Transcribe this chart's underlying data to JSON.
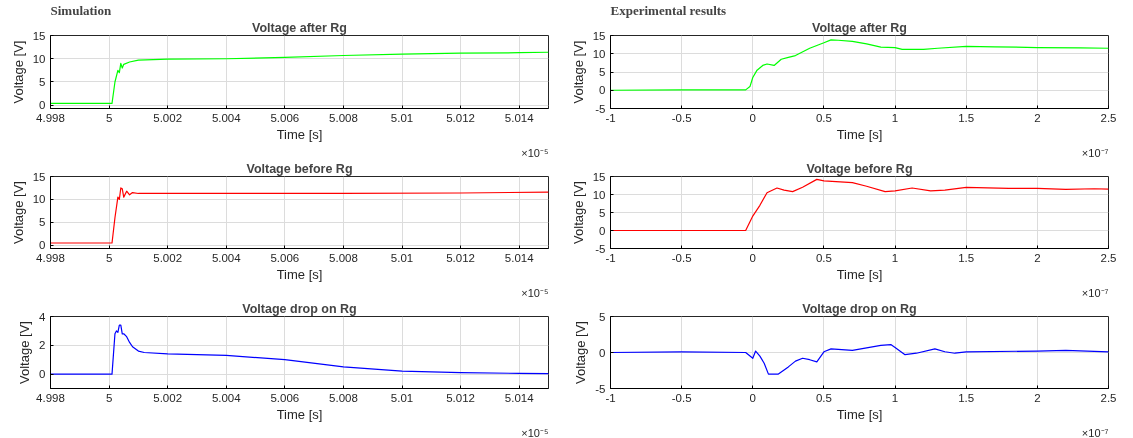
{
  "chart_data": [
    {
      "type": "line",
      "title": "Voltage after Rg",
      "xlabel": "Time [s]",
      "ylabel": "Voltage [V]",
      "annotations": [
        "Simulation",
        "×10⁻⁵"
      ],
      "xlim": [
        4.998,
        5.015
      ],
      "xticks": [
        4.998,
        5,
        5.002,
        5.004,
        5.006,
        5.008,
        5.01,
        5.012,
        5.014
      ],
      "ylim": [
        -0.7,
        15
      ],
      "yticks": [
        0,
        5,
        10,
        15
      ],
      "grid": true,
      "x": [
        4.998,
        5.0001,
        5.0002,
        5.0003,
        5.00035,
        5.0004,
        5.00045,
        5.0005,
        5.0007,
        5.001,
        5.0015,
        5.002,
        5.004,
        5.006,
        5.008,
        5.01,
        5.012,
        5.014,
        5.015
      ],
      "series": [
        {
          "color": "#00ff00",
          "values": [
            0.4,
            0.4,
            5,
            7.5,
            7,
            9,
            8,
            8.8,
            9.3,
            9.7,
            9.8,
            9.9,
            10.0,
            10.3,
            10.7,
            11.0,
            11.2,
            11.3,
            11.4
          ]
        }
      ]
    },
    {
      "type": "line",
      "title": "Voltage after Rg",
      "xlabel": "Time [s]",
      "ylabel": "Voltage [V]",
      "annotations": [
        "Experimental results",
        "×10⁻⁷"
      ],
      "xlim": [
        -1,
        2.5
      ],
      "xticks": [
        -1,
        -0.5,
        0,
        0.5,
        1,
        1.5,
        2,
        2.5
      ],
      "ylim": [
        -5,
        15
      ],
      "yticks": [
        -5,
        0,
        5,
        10,
        15
      ],
      "grid": true,
      "x": [
        -1,
        -0.5,
        -0.05,
        -0.02,
        0,
        0.03,
        0.07,
        0.1,
        0.15,
        0.2,
        0.25,
        0.3,
        0.4,
        0.5,
        0.55,
        0.6,
        0.7,
        0.8,
        0.9,
        1.0,
        1.05,
        1.2,
        1.3,
        1.5,
        1.7,
        2.0,
        2.3,
        2.5
      ],
      "series": [
        {
          "color": "#00ff00",
          "values": [
            0,
            0.1,
            0.1,
            1,
            3.5,
            5.5,
            6.8,
            7.2,
            6.8,
            8.5,
            9.0,
            9.5,
            11.5,
            13,
            13.8,
            13.7,
            13.4,
            12.7,
            11.8,
            11.7,
            11.2,
            11.2,
            11.5,
            12.0,
            11.9,
            11.7,
            11.6,
            11.5
          ]
        }
      ]
    },
    {
      "type": "line",
      "title": "Voltage before Rg",
      "xlabel": "Time [s]",
      "ylabel": "Voltage [V]",
      "annotations": [
        "×10⁻⁵"
      ],
      "xlim": [
        4.998,
        5.015
      ],
      "xticks": [
        4.998,
        5,
        5.002,
        5.004,
        5.006,
        5.008,
        5.01,
        5.012,
        5.014
      ],
      "ylim": [
        -0.7,
        15
      ],
      "yticks": [
        0,
        5,
        10,
        15
      ],
      "grid": true,
      "x": [
        4.998,
        5.0001,
        5.0002,
        5.0003,
        5.00035,
        5.0004,
        5.00045,
        5.0005,
        5.0006,
        5.0007,
        5.0008,
        5.001,
        5.004,
        5.008,
        5.012,
        5.015
      ],
      "series": [
        {
          "color": "#ff0000",
          "values": [
            0.5,
            0.5,
            6,
            10.5,
            10,
            12.5,
            12.3,
            10.5,
            11.8,
            11,
            11.5,
            11.3,
            11.3,
            11.3,
            11.4,
            11.6
          ]
        }
      ]
    },
    {
      "type": "line",
      "title": "Voltage before Rg",
      "xlabel": "Time [s]",
      "ylabel": "Voltage [V]",
      "annotations": [
        "×10⁻⁷"
      ],
      "xlim": [
        -1,
        2.5
      ],
      "xticks": [
        -1,
        -0.5,
        0,
        0.5,
        1,
        1.5,
        2,
        2.5
      ],
      "ylim": [
        -5,
        15
      ],
      "yticks": [
        -5,
        0,
        5,
        10,
        15
      ],
      "grid": true,
      "x": [
        -1,
        -0.05,
        0,
        0.05,
        0.1,
        0.17,
        0.22,
        0.28,
        0.35,
        0.45,
        0.5,
        0.7,
        0.8,
        0.93,
        1.0,
        1.12,
        1.25,
        1.35,
        1.5,
        1.8,
        2.0,
        2.2,
        2.4,
        2.5
      ],
      "series": [
        {
          "color": "#ff0000",
          "values": [
            0,
            0,
            4,
            7,
            10.5,
            11.8,
            11.2,
            10.8,
            12,
            14.2,
            13.8,
            13.3,
            12.3,
            10.8,
            11,
            11.8,
            11.0,
            11.2,
            12,
            11.7,
            11.7,
            11.4,
            11.6,
            11.5
          ]
        }
      ]
    },
    {
      "type": "line",
      "title": "Voltage drop on Rg",
      "xlabel": "Time [s]",
      "ylabel": "Voltage [V]",
      "annotations": [
        "×10⁻⁵"
      ],
      "xlim": [
        4.998,
        5.015
      ],
      "xticks": [
        4.998,
        5,
        5.002,
        5.004,
        5.006,
        5.008,
        5.01,
        5.012,
        5.014
      ],
      "ylim": [
        -1,
        4
      ],
      "yticks": [
        0,
        2,
        4
      ],
      "grid": true,
      "x": [
        4.998,
        5.0001,
        5.0002,
        5.00025,
        5.0003,
        5.00035,
        5.0004,
        5.00045,
        5.0005,
        5.0006,
        5.0007,
        5.0008,
        5.001,
        5.0012,
        5.002,
        5.004,
        5.006,
        5.008,
        5.01,
        5.012,
        5.014,
        5.015
      ],
      "series": [
        {
          "color": "#0000ff",
          "values": [
            0,
            0,
            2.8,
            3.0,
            2.9,
            3.4,
            3.4,
            2.8,
            2.8,
            2.6,
            2.2,
            1.9,
            1.6,
            1.5,
            1.4,
            1.3,
            1.0,
            0.5,
            0.2,
            0.1,
            0.05,
            0.03
          ]
        }
      ]
    },
    {
      "type": "line",
      "title": "Voltage drop on Rg",
      "xlabel": "Time [s]",
      "ylabel": "Voltage [V]",
      "annotations": [
        "×10⁻⁷"
      ],
      "xlim": [
        -1,
        2.5
      ],
      "xticks": [
        -1,
        -0.5,
        0,
        0.5,
        1,
        1.5,
        2,
        2.5
      ],
      "ylim": [
        -5,
        5
      ],
      "yticks": [
        -5,
        0,
        5
      ],
      "grid": true,
      "x": [
        -1,
        -0.5,
        -0.05,
        0,
        0.02,
        0.05,
        0.08,
        0.11,
        0.18,
        0.25,
        0.3,
        0.35,
        0.4,
        0.45,
        0.5,
        0.55,
        0.7,
        0.9,
        0.97,
        1.0,
        1.07,
        1.15,
        1.28,
        1.35,
        1.42,
        1.5,
        2.0,
        2.2,
        2.5
      ],
      "series": [
        {
          "color": "#0000ff",
          "values": [
            0,
            0.1,
            0,
            -0.8,
            0.2,
            -0.5,
            -1.5,
            -3,
            -3,
            -2,
            -1.2,
            -0.8,
            -1.0,
            -1.3,
            0.1,
            0.5,
            0.3,
            1.0,
            1.1,
            0.7,
            -0.3,
            -0.1,
            0.5,
            0.1,
            -0.1,
            0.1,
            0.2,
            0.3,
            0.1
          ]
        }
      ]
    }
  ]
}
